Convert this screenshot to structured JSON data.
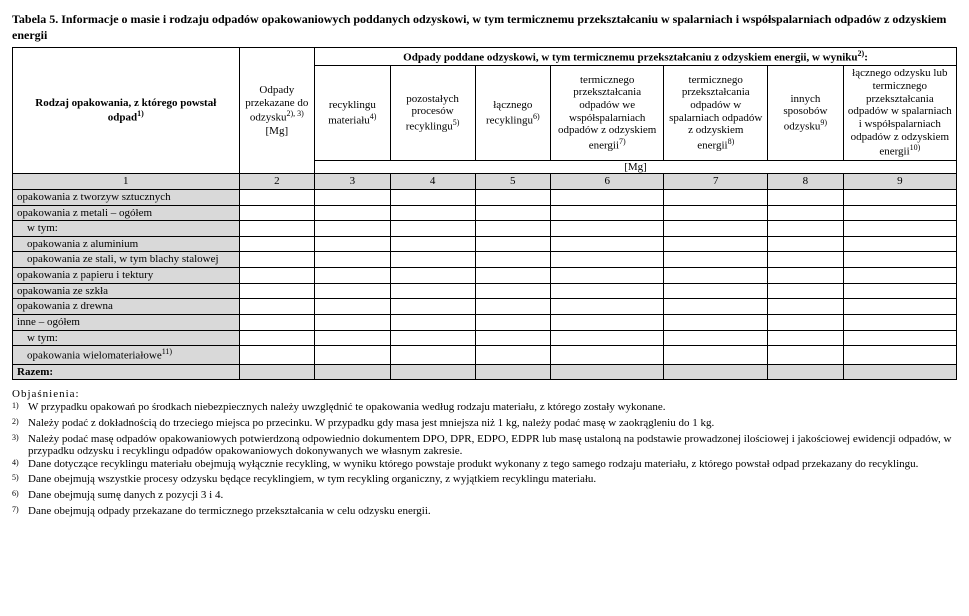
{
  "title": "Tabela 5. Informacje o masie i rodzaju odpadów opakowaniowych poddanych odzyskowi, w tym termicznemu przekształcaniu w spalarniach i współspalarniach odpadów z odzyskiem energii",
  "headers": {
    "h1": "Rodzaj opakowania,\nz którego powstał odpad",
    "h1_sup": "1)",
    "h2": "Odpady przekazane do odzysku",
    "h2_sup": "2), 3)",
    "h2_unit": "[Mg]",
    "h3_group": "Odpady poddane odzyskowi, w tym termicznemu przekształcaniu z odzyskiem energii, w wyniku",
    "h3_group_sup": "2)",
    "c3": "recyklingu materiału",
    "c3_sup": "4)",
    "c4": "pozostałych procesów recyklingu",
    "c4_sup": "5)",
    "c5": "łącznego recyklingu",
    "c5_sup": "6)",
    "c6": "termicznego przekształcania odpadów we współspalarniach odpadów z odzyskiem energii",
    "c6_sup": "7)",
    "c7": "termicznego przekształcania odpadów w spalarniach odpadów z odzyskiem energii",
    "c7_sup": "8)",
    "c8": "innych sposobów odzysku",
    "c8_sup": "9)",
    "c9": "łącznego odzysku lub termicznego przekształcania odpadów w spalarniach i współspalarniach odpadów z odzyskiem energii",
    "c9_sup": "10)",
    "unit_row": "[Mg]"
  },
  "colnums": [
    "1",
    "2",
    "3",
    "4",
    "5",
    "6",
    "7",
    "8",
    "9"
  ],
  "rows": [
    {
      "label": "opakowania z tworzyw sztucznych",
      "indent": 0
    },
    {
      "label": "opakowania z metali – ogółem",
      "indent": 0
    },
    {
      "label": "w tym:",
      "indent": 1
    },
    {
      "label": "opakowania z aluminium",
      "indent": 1
    },
    {
      "label": "opakowania ze stali, w tym blachy stalowej",
      "indent": 1
    },
    {
      "label": "opakowania z papieru i tektury",
      "indent": 0
    },
    {
      "label": "opakowania ze szkła",
      "indent": 0
    },
    {
      "label": "opakowania z drewna",
      "indent": 0
    },
    {
      "label": "inne – ogółem",
      "indent": 0
    },
    {
      "label": "w tym:",
      "indent": 1
    },
    {
      "label": "opakowania wielomateriałowe",
      "indent": 1,
      "sup": "11)"
    }
  ],
  "total_label": "Razem:",
  "notes_title": "Objaśnienia:",
  "notes": [
    {
      "n": "1)",
      "t": "W przypadku opakowań po środkach niebezpiecznych należy uwzględnić te opakowania według rodzaju materiału, z którego zostały wykonane."
    },
    {
      "n": "2)",
      "t": "Należy podać z dokładnością do trzeciego miejsca po przecinku. W przypadku gdy masa jest mniejsza niż 1 kg, należy podać masę w zaokrągleniu do 1 kg."
    },
    {
      "n": "3)",
      "t": "Należy podać masę odpadów opakowaniowych potwierdzoną odpowiednio dokumentem DPO, DPR, EDPO, EDPR lub masę ustaloną na podstawie prowadzonej ilościowej i jakościowej ewidencji odpadów, w przypadku odzysku i recyklingu odpadów opakowaniowych dokonywanych we własnym zakresie."
    },
    {
      "n": "4)",
      "t": "Dane dotyczące recyklingu materiału obejmują wyłącznie recykling, w wyniku którego powstaje produkt wykonany z tego samego rodzaju materiału, z którego powstał odpad przekazany do recyklingu."
    },
    {
      "n": "5)",
      "t": "Dane obejmują wszystkie procesy odzysku będące recyklingiem, w tym recykling organiczny, z wyjątkiem recyklingu materiału."
    },
    {
      "n": "6)",
      "t": "Dane obejmują sumę danych z pozycji 3 i 4."
    },
    {
      "n": "7)",
      "t": "Dane obejmują odpady przekazane do termicznego przekształcania w celu odzysku energii."
    }
  ]
}
